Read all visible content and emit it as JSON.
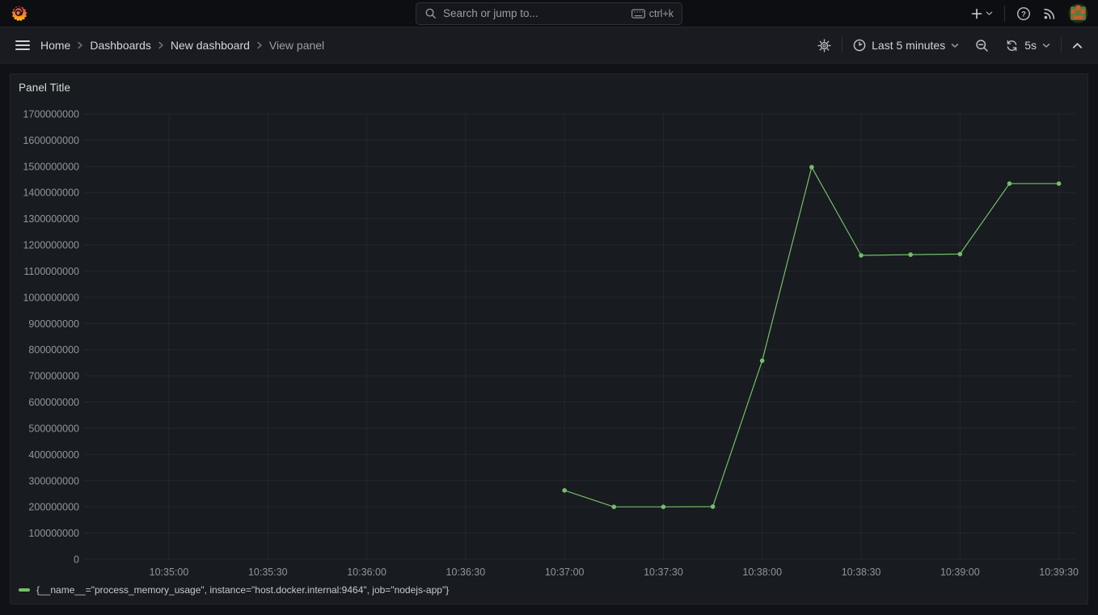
{
  "topbar": {
    "search": {
      "placeholder": "Search or jump to...",
      "shortcut": "ctrl+k"
    },
    "help_glyph": "?"
  },
  "breadcrumbs": {
    "items": [
      {
        "label": "Home"
      },
      {
        "label": "Dashboards"
      },
      {
        "label": "New dashboard"
      },
      {
        "label": "View panel"
      }
    ]
  },
  "toolbar": {
    "time_range": "Last 5 minutes",
    "refresh_interval": "5s"
  },
  "panel": {
    "title": "Panel Title"
  },
  "colors": {
    "series_green": "#73BF69",
    "page_background": "#111217",
    "panel_background": "#181b1f",
    "grid": "rgba(204,204,220,0.07)",
    "tick_text": "rgba(204,204,220,0.68)"
  },
  "chart_data": {
    "type": "line",
    "title": "Panel Title",
    "x_domain": [
      "10:34:34",
      "10:39:35"
    ],
    "ylim": [
      0,
      1700000000
    ],
    "grid": true,
    "legend_position": "bottom-left",
    "x_ticks": [
      "10:35:00",
      "10:35:30",
      "10:36:00",
      "10:36:30",
      "10:37:00",
      "10:37:30",
      "10:38:00",
      "10:38:30",
      "10:39:00",
      "10:39:30"
    ],
    "y_ticks": [
      0,
      100000000,
      200000000,
      300000000,
      400000000,
      500000000,
      600000000,
      700000000,
      800000000,
      900000000,
      1000000000,
      1100000000,
      1200000000,
      1300000000,
      1400000000,
      1500000000,
      1600000000,
      1700000000
    ],
    "series": [
      {
        "name": "{__name__=\"process_memory_usage\", instance=\"host.docker.internal:9464\", job=\"nodejs-app\"}",
        "color": "#73BF69",
        "x": [
          "10:37:00",
          "10:37:15",
          "10:37:30",
          "10:37:45",
          "10:38:00",
          "10:38:15",
          "10:38:30",
          "10:38:45",
          "10:39:00",
          "10:39:15",
          "10:39:30"
        ],
        "values": [
          263000000,
          200000000,
          200000000,
          201000000,
          758000000,
          1497000000,
          1160000000,
          1163000000,
          1165000000,
          1434000000,
          1434000000
        ]
      }
    ]
  }
}
